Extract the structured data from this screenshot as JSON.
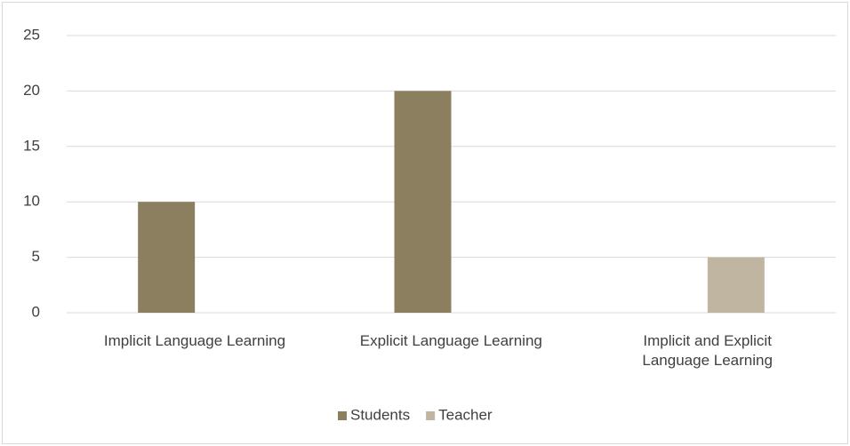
{
  "chart_data": {
    "type": "bar",
    "categories": [
      "Implicit Language Learning",
      "Explicit Language Learning",
      "Implicit and  Explicit\nLanguage Learning"
    ],
    "series": [
      {
        "name": "Students",
        "color": "#8b7f60",
        "values": [
          10,
          20,
          0
        ]
      },
      {
        "name": "Teacher",
        "color": "#bfb5a1",
        "values": [
          0,
          0,
          5
        ]
      }
    ],
    "ylim": [
      0,
      25
    ],
    "yticks": [
      0,
      5,
      10,
      15,
      20,
      25
    ],
    "grid": true,
    "legend": "bottom"
  }
}
